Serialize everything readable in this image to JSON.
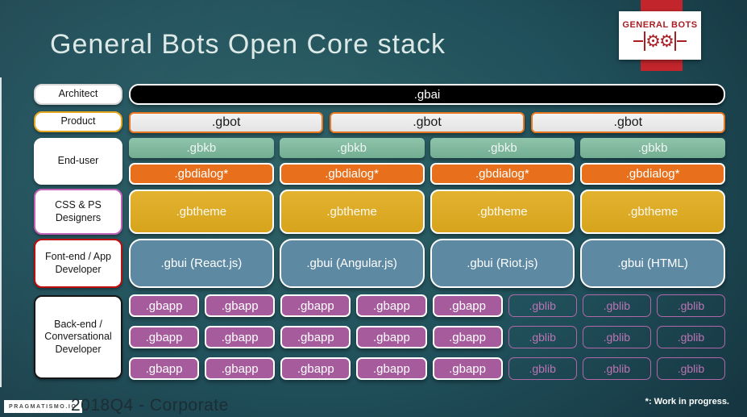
{
  "slide": {
    "title": "General Bots Open Core stack"
  },
  "logo": {
    "text": "GENERAL BOTS",
    "gear_icon": "gear-icon"
  },
  "roles": [
    {
      "label": "Architect"
    },
    {
      "label": "Product"
    },
    {
      "label": "End-user"
    },
    {
      "label": "CSS & PS\nDesigners"
    },
    {
      "label": "Font-end / App\nDeveloper"
    },
    {
      "label": "Back-end /\nConversational\nDeveloper"
    }
  ],
  "stack": {
    "gbai": ".gbai",
    "gbot": [
      ".gbot",
      ".gbot",
      ".gbot"
    ],
    "gbkb": [
      ".gbkb",
      ".gbkb",
      ".gbkb",
      ".gbkb"
    ],
    "gbdialog": [
      ".gbdialog*",
      ".gbdialog*",
      ".gbdialog*",
      ".gbdialog*"
    ],
    "gbtheme": [
      ".gbtheme",
      ".gbtheme",
      ".gbtheme",
      ".gbtheme"
    ],
    "gbui": [
      ".gbui (React.js)",
      ".gbui (Angular.js)",
      ".gbui (Riot.js)",
      ".gbui (HTML)"
    ],
    "app_grid": [
      [
        ".gbapp",
        ".gbapp",
        ".gbapp",
        ".gbapp",
        ".gbapp",
        ".gblib",
        ".gblib",
        ".gblib"
      ],
      [
        ".gbapp",
        ".gbapp",
        ".gbapp",
        ".gbapp",
        ".gbapp",
        ".gblib",
        ".gblib",
        ".gblib"
      ],
      [
        ".gbapp",
        ".gbapp",
        ".gbapp",
        ".gbapp",
        ".gbapp",
        ".gblib",
        ".gblib",
        ".gblib"
      ]
    ]
  },
  "footer": {
    "brand": "PRAGMATISMO.IO",
    "text": "2018Q4 - Corporate",
    "note": "*: Work in progress."
  },
  "colors": {
    "background_teal": "#20505b",
    "gbai_black": "#000000",
    "gbot_border_orange": "#e87722",
    "gbkb_green": "#7db69c",
    "gbdialog_orange": "#e8701c",
    "gbtheme_gold": "#ddaa23",
    "gbui_slate": "#5d89a3",
    "gbapp_purple": "#a65b9d",
    "gblib_outline": "#b168a8",
    "logo_red": "#c2262c",
    "role_borders": [
      "#d8d8d8",
      "#e2a81f",
      "#ffffff",
      "#c263b8",
      "#c00d0d",
      "#161616"
    ]
  }
}
